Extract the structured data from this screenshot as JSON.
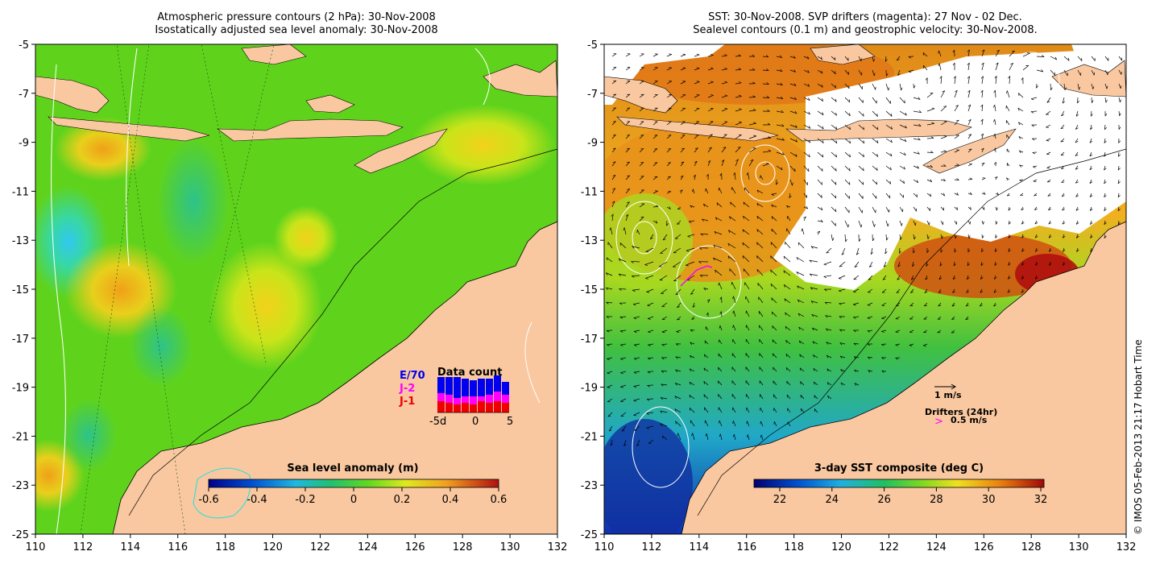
{
  "left_panel": {
    "title_line1": "Atmospheric pressure contours (2 hPa): 30-Nov-2008",
    "title_line2": "Isostatically adjusted sea level anomaly: 30-Nov-2008",
    "colorbar_title": "Sea level anomaly (m)",
    "colorbar_ticks": [
      "-0.6",
      "-0.4",
      "-0.2",
      "0",
      "0.2",
      "0.4",
      "0.6"
    ],
    "colorbar_range": [
      -0.6,
      0.6
    ],
    "inset": {
      "title": "Data count",
      "legend": [
        {
          "label": "E/70",
          "color": "#0000ee"
        },
        {
          "label": "J-2",
          "color": "#ff00ff"
        },
        {
          "label": "J-1",
          "color": "#ee0000"
        }
      ],
      "x_ticks": [
        "-5d",
        "0",
        "5"
      ]
    }
  },
  "right_panel": {
    "title_line1": "SST: 30-Nov-2008. SVP drifters (magenta): 27 Nov - 02 Dec.",
    "title_line2": "Sealevel contours (0.1 m) and geostrophic velocity: 30-Nov-2008.",
    "colorbar_title": "3-day SST composite (deg C)",
    "colorbar_ticks": [
      "22",
      "24",
      "26",
      "28",
      "30",
      "32"
    ],
    "velocity_scale_label": "1 m/s",
    "drifters_label": "Drifters (24hr)",
    "drifter_scale_label": "0.5 m/s",
    "drifter_marker": ">"
  },
  "axes": {
    "x_ticks": [
      "110",
      "112",
      "114",
      "116",
      "118",
      "120",
      "122",
      "124",
      "126",
      "128",
      "130",
      "132"
    ],
    "y_ticks": [
      "-5",
      "-7",
      "-9",
      "-11",
      "-13",
      "-15",
      "-17",
      "-19",
      "-21",
      "-23",
      "-25"
    ],
    "lon_range": [
      110,
      132
    ],
    "lat_range": [
      -25,
      -5
    ]
  },
  "credit": "© IMOS 05-Feb-2013 21:17 Hobart Time",
  "colors": {
    "land": "#f9c8a0",
    "ocean_green": "#5fd31c",
    "sst_warm": "#e07a10",
    "sst_cool": "#1a7fe0",
    "drifter": "#ff00ff"
  }
}
